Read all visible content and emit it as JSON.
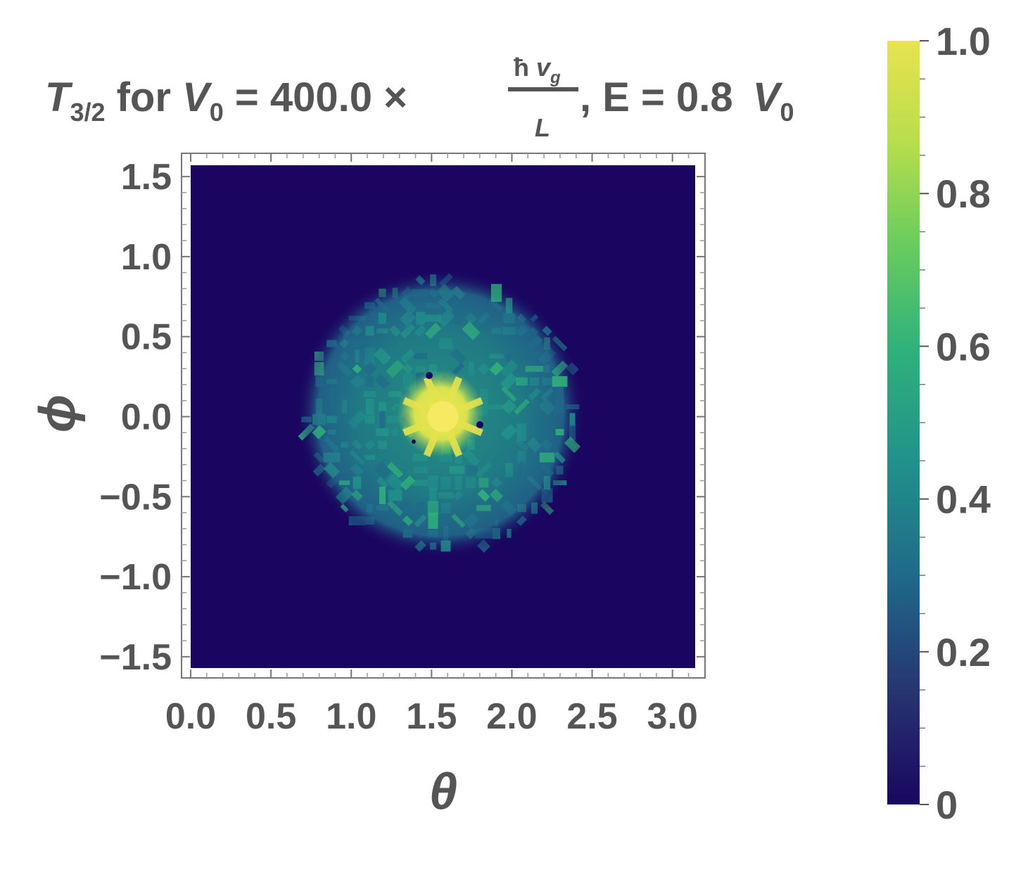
{
  "chart_data": {
    "type": "heatmap",
    "title": {
      "t_symbol": "T",
      "t_sub": "3/2",
      "for_text": " for ",
      "v_symbol": "V",
      "v_sub": "0",
      "eq_text": " = 400.0 ×",
      "frac_num_hbar": "ħ",
      "frac_num_v": "v",
      "frac_num_sub": "g",
      "frac_den": "L",
      "e_text": ", E = 0.8 ",
      "v2_symbol": "V",
      "v2_sub": "0"
    },
    "xlabel": "θ",
    "ylabel": "ϕ",
    "xlim": [
      0,
      3.14159
    ],
    "ylim": [
      -1.5708,
      1.5708
    ],
    "x_ticks": [
      "0.0",
      "0.5",
      "1.0",
      "1.5",
      "2.0",
      "2.5",
      "3.0"
    ],
    "y_ticks": [
      "1.5",
      "1.0",
      "0.5",
      "0.0",
      "−0.5",
      "−1.0",
      "−1.5"
    ],
    "colorbar": {
      "min": 0,
      "max": 1,
      "ticks": [
        "1.0",
        "0.8",
        "0.6",
        "0.4",
        "0.2",
        "0"
      ],
      "colormap": [
        "#1a0660",
        "#26326f",
        "#1f6a8a",
        "#21928a",
        "#30b27a",
        "#6dcd5d",
        "#b9de4c",
        "#e8e34e"
      ]
    },
    "background_value": 0.0,
    "features": {
      "disk_center": [
        1.5708,
        0.0
      ],
      "disk_radius_theta": 0.85,
      "disk_radius_phi": 0.85,
      "disk_mean_value": 0.45,
      "core_radius": 0.22,
      "core_value": 0.95
    }
  }
}
